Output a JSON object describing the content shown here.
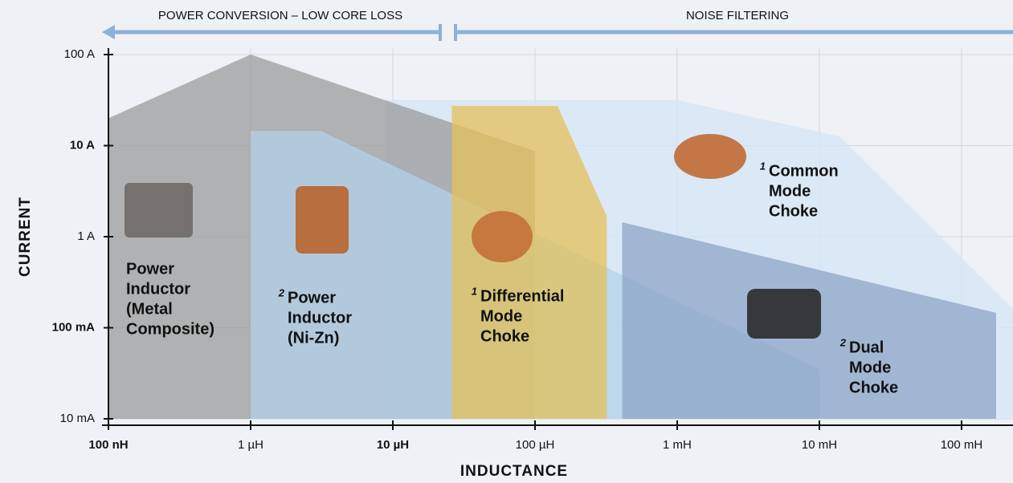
{
  "chart_data": {
    "type": "region",
    "x_label": "INDUCTANCE",
    "y_label": "CURRENT",
    "top_left_banner": "POWER CONVERSION – LOW CORE LOSS",
    "top_right_banner": "NOISE FILTERING",
    "xscale": "log",
    "yscale": "log",
    "grid": true,
    "xlim": [
      1e-07,
      0.23
    ],
    "ylim": [
      0.01,
      100
    ],
    "xticks": [
      {
        "value": 1e-07,
        "label": "100 nH"
      },
      {
        "value": 1e-06,
        "label": "1 µH"
      },
      {
        "value": 1e-05,
        "label": "10 µH"
      },
      {
        "value": 0.0001,
        "label": "100 µH"
      },
      {
        "value": 0.001,
        "label": "1 mH"
      },
      {
        "value": 0.01,
        "label": "10 mH"
      },
      {
        "value": 0.1,
        "label": "100 mH"
      }
    ],
    "yticks": [
      {
        "value": 0.01,
        "label": "10 mA"
      },
      {
        "value": 0.1,
        "label": "100 mA"
      },
      {
        "value": 1,
        "label": "1 A"
      },
      {
        "value": 10,
        "label": "10 A"
      },
      {
        "value": 100,
        "label": "100 A"
      }
    ],
    "series": [
      {
        "name": [
          "Common",
          "Mode",
          "Choke"
        ],
        "footnote": "1",
        "color": "#d6e6f6",
        "x": [
          8.9e-06,
          0.001,
          0.0139,
          0.23,
          0.23,
          8.9e-06
        ],
        "y": [
          31.6,
          31.6,
          12.6,
          0.161,
          0.01,
          0.01
        ]
      },
      {
        "name": [
          "Power",
          "Inductor",
          "(Metal",
          "Composite)"
        ],
        "color": "#9b9b9b",
        "x": [
          1e-07,
          1e-06,
          0.0001,
          0.0001,
          1e-07
        ],
        "y": [
          20,
          100,
          8.7,
          0.01,
          0.01
        ]
      },
      {
        "name": [
          "Power",
          "Inductor",
          "(Ni-Zn)"
        ],
        "footnote": "2",
        "color": "#b3d1ea",
        "x": [
          1e-06,
          3.1e-06,
          0.01,
          0.01,
          1e-06
        ],
        "y": [
          14.5,
          14.5,
          0.035,
          0.01,
          0.01
        ]
      },
      {
        "name": [
          "Differential",
          "Mode",
          "Choke"
        ],
        "footnote": "1",
        "color": "#e4c15a",
        "x": [
          2.6e-05,
          0.000144,
          0.00032,
          0.00032,
          2.6e-05
        ],
        "y": [
          27.3,
          27.3,
          1.66,
          0.01,
          0.01
        ]
      },
      {
        "name": [
          "Dual",
          "Mode",
          "Choke"
        ],
        "footnote": "2",
        "color": "#8ea6c6",
        "x": [
          0.00041,
          0.175,
          0.175,
          0.00041
        ],
        "y": [
          1.44,
          0.146,
          0.01,
          0.01
        ]
      }
    ]
  }
}
